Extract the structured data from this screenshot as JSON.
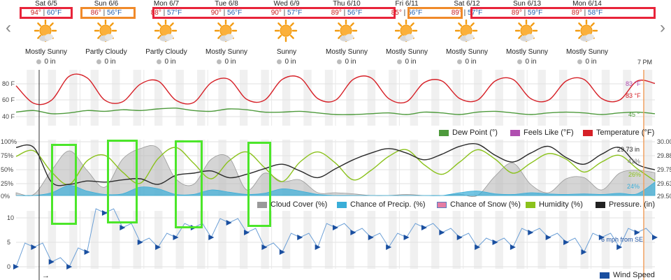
{
  "days": [
    {
      "date": "Sat 6/5",
      "hi": "94°",
      "lo": "60°F",
      "cond": "Mostly Sunny",
      "precip": "0 in"
    },
    {
      "date": "Sun 6/6",
      "hi": "86°",
      "lo": "56°F",
      "cond": "Partly Cloudy",
      "precip": "0 in"
    },
    {
      "date": "Mon 6/7",
      "hi": "88°",
      "lo": "57°F",
      "cond": "Partly Cloudy",
      "precip": "0 in"
    },
    {
      "date": "Tue 6/8",
      "hi": "90°",
      "lo": "56°F",
      "cond": "Mostly Sunny",
      "precip": "0 in"
    },
    {
      "date": "Wed 6/9",
      "hi": "90°",
      "lo": "57°F",
      "cond": "Sunny",
      "precip": "0 in"
    },
    {
      "date": "Thu 6/10",
      "hi": "89°",
      "lo": "56°F",
      "cond": "Mostly Sunny",
      "precip": "0 in"
    },
    {
      "date": "Fri 6/11",
      "hi": "85°",
      "lo": "56°F",
      "cond": "Mostly Sunny",
      "precip": "0 in"
    },
    {
      "date": "Sat 6/12",
      "hi": "89°",
      "lo": "57°F",
      "cond": "Mostly Sunny",
      "precip": "0 in"
    },
    {
      "date": "Sun 6/13",
      "hi": "89°",
      "lo": "59°F",
      "cond": "Mostly Sunny",
      "precip": "0 in"
    },
    {
      "date": "Mon 6/14",
      "hi": "89°",
      "lo": "58°F",
      "cond": "Mostly Sunny",
      "precip": "0 in"
    }
  ],
  "time_marker": "7 PM",
  "temp_ticks": [
    "80 F",
    "60 F",
    "40 F"
  ],
  "temp_labels": {
    "feels_like": "83 °F",
    "temperature": "83 °F",
    "dew_point": "45 °"
  },
  "temp_legend": [
    "Dew Point (°)",
    "Feels Like (°F)",
    "Temperature (°F)"
  ],
  "pct_ticks": [
    "100%",
    "75%",
    "50%",
    "25%",
    "0%"
  ],
  "pressure_ticks": [
    "30.00",
    "29.88",
    "29.75",
    "29.63",
    "29.50"
  ],
  "pct_labels": {
    "pressure": "29.73 in",
    "cloud": "41%",
    "humidity": "26%",
    "precip": "24%"
  },
  "pct_legend": [
    "Cloud Cover (%)",
    "Chance of Precip. (%)",
    "Chance of Snow (%)",
    "Humidity (%)",
    "Pressure. (in)"
  ],
  "wind_ticks": [
    "10",
    "5",
    "0"
  ],
  "wind_label": "6 mph from SE",
  "wind_legend": "Wind Speed",
  "wind_arrow": "→",
  "colors": {
    "temperature": "#d62027",
    "feels_like": "#b04fb0",
    "dew_point": "#4e9a3c",
    "cloud": "#b9b9b9",
    "precip": "#3aaed8",
    "humidity": "#8bc21c",
    "pressure": "#2a2a2a",
    "wind": "#6b9fd6",
    "wind_arrow": "#1a4fa0"
  },
  "chart_data": [
    {
      "type": "line",
      "series": [
        {
          "name": "Temperature (°F)",
          "values": [
            80,
            58,
            62,
            92,
            90,
            62,
            60,
            82,
            86,
            62,
            59,
            84,
            88,
            63,
            62,
            88,
            90,
            64,
            62,
            88,
            90,
            64,
            60,
            84,
            86,
            64,
            62,
            86,
            88,
            64,
            62,
            86,
            88,
            64,
            62,
            86,
            83
          ]
        },
        {
          "name": "Dew Point (°)",
          "values": [
            47,
            49,
            45,
            46,
            49,
            48,
            50,
            49,
            51,
            52,
            49,
            48,
            51,
            50,
            47,
            47,
            48,
            46,
            44,
            44,
            45,
            46,
            44,
            47,
            46,
            44,
            47,
            48,
            46,
            44,
            46,
            47,
            46,
            44,
            46,
            47,
            45
          ]
        }
      ]
    },
    {
      "type": "area",
      "series": [
        {
          "name": "Pressure. (in)",
          "values": [
            29.93,
            29.93,
            29.62,
            29.6,
            29.63,
            29.62,
            29.64,
            29.65,
            29.6,
            29.68,
            29.7,
            29.72,
            29.66,
            29.69,
            29.74,
            29.78,
            29.72,
            29.66,
            29.74,
            29.82,
            29.88,
            29.92,
            29.88,
            29.82,
            29.87,
            29.94,
            29.96,
            29.86,
            29.8,
            29.88,
            29.94,
            29.84,
            29.78,
            29.87,
            29.93,
            29.78,
            29.73
          ]
        },
        {
          "name": "Humidity (%)",
          "values": [
            70,
            80,
            42,
            20,
            62,
            72,
            42,
            22,
            66,
            86,
            58,
            30,
            62,
            78,
            50,
            25,
            60,
            78,
            58,
            28,
            45,
            70,
            82,
            55,
            38,
            60,
            82,
            65,
            40,
            58,
            75,
            65,
            42,
            60,
            72,
            48,
            26
          ]
        },
        {
          "name": "Cloud Cover (%)",
          "values": [
            5,
            2,
            45,
            80,
            45,
            15,
            65,
            84,
            85,
            30,
            20,
            65,
            68,
            10,
            40,
            25,
            28,
            5,
            5,
            3,
            0,
            0,
            2,
            0,
            0,
            2,
            0,
            35,
            58,
            20,
            5,
            30,
            32,
            10,
            40,
            45,
            41
          ]
        },
        {
          "name": "Chance of Precip. (%)",
          "values": [
            0,
            0,
            5,
            18,
            8,
            2,
            3,
            15,
            12,
            2,
            2,
            10,
            6,
            2,
            4,
            12,
            8,
            2,
            0,
            0,
            0,
            0,
            0,
            0,
            0,
            5,
            8,
            3,
            2,
            5,
            3,
            2,
            3,
            2,
            4,
            3,
            24
          ]
        }
      ]
    },
    {
      "type": "line",
      "series": [
        {
          "name": "Wind Speed",
          "values": [
            0,
            4,
            1,
            0,
            3,
            11,
            8,
            5,
            4,
            6,
            8,
            6,
            9,
            7,
            4,
            3,
            6,
            4,
            8,
            7,
            6,
            4,
            6,
            8,
            7,
            6,
            4,
            5,
            4,
            7,
            6,
            5,
            3,
            6,
            4,
            7,
            6
          ]
        }
      ],
      "ylim": [
        0,
        10
      ]
    }
  ]
}
